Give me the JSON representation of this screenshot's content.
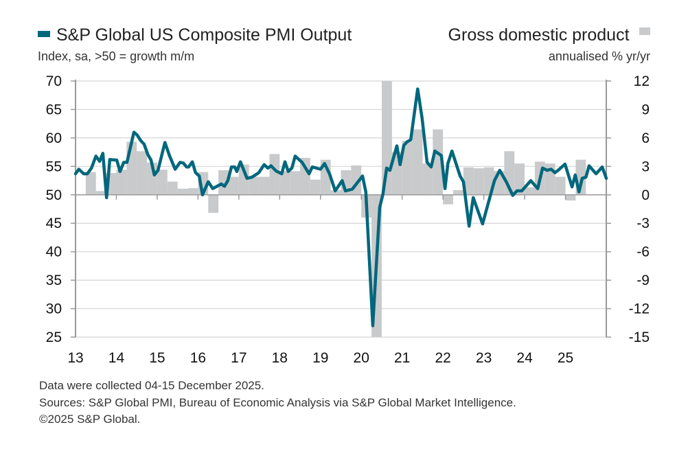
{
  "legend": {
    "pmi_label": "S&P Global US Composite PMI Output",
    "pmi_units": "Index, sa, >50 = growth m/m",
    "gdp_label": "Gross domestic product",
    "gdp_units": "annualised % yr/yr"
  },
  "footer": {
    "line1": "Data were collected 04-15 December 2025.",
    "line2": "Sources: S&P Global PMI, Bureau of Economic Analysis via S&P Global Market Intelligence.",
    "line3": "©2025 S&P Global."
  },
  "chart_data": {
    "type": "line+bar",
    "colors": {
      "pmi": "#00677c",
      "gdp": "#c9cacc",
      "grid": "#d4d4d4"
    },
    "grid": true,
    "xlim": [
      2013,
      2026
    ],
    "x_tick_labels": [
      "13",
      "14",
      "15",
      "16",
      "17",
      "18",
      "19",
      "20",
      "21",
      "22",
      "23",
      "24",
      "25"
    ],
    "y_left": {
      "ylim": [
        25,
        70
      ],
      "ticks": [
        "70",
        "65",
        "60",
        "55",
        "50",
        "45",
        "40",
        "35",
        "30",
        "25"
      ]
    },
    "y_right": {
      "ylim": [
        -15,
        12
      ],
      "ticks": [
        "12",
        "9",
        "6",
        "3",
        "0",
        "-3",
        "-6",
        "-9",
        "-12",
        "-15"
      ]
    },
    "series": [
      {
        "name": "S&P Global US Composite PMI Output",
        "type": "line",
        "axis": "left",
        "points": [
          [
            2013.0,
            53.7
          ],
          [
            2013.08,
            54.5
          ],
          [
            2013.2,
            53.7
          ],
          [
            2013.29,
            53.7
          ],
          [
            2013.39,
            54.7
          ],
          [
            2013.5,
            56.8
          ],
          [
            2013.59,
            55.9
          ],
          [
            2013.67,
            57.3
          ],
          [
            2013.76,
            49.5
          ],
          [
            2013.84,
            56.2
          ],
          [
            2014.01,
            56.1
          ],
          [
            2014.09,
            54.1
          ],
          [
            2014.18,
            55.7
          ],
          [
            2014.26,
            55.7
          ],
          [
            2014.43,
            61.0
          ],
          [
            2014.51,
            60.5
          ],
          [
            2014.6,
            59.5
          ],
          [
            2014.68,
            58.9
          ],
          [
            2014.77,
            57.1
          ],
          [
            2014.85,
            56.1
          ],
          [
            2014.93,
            53.5
          ],
          [
            2015.02,
            54.3
          ],
          [
            2015.19,
            59.2
          ],
          [
            2015.3,
            56.9
          ],
          [
            2015.44,
            54.5
          ],
          [
            2015.56,
            55.7
          ],
          [
            2015.64,
            55.6
          ],
          [
            2015.72,
            54.9
          ],
          [
            2015.77,
            54.9
          ],
          [
            2015.86,
            55.8
          ],
          [
            2015.94,
            53.9
          ],
          [
            2016.03,
            53.3
          ],
          [
            2016.11,
            50.0
          ],
          [
            2016.25,
            52.3
          ],
          [
            2016.36,
            51.1
          ],
          [
            2016.57,
            51.9
          ],
          [
            2016.65,
            51.5
          ],
          [
            2016.73,
            52.5
          ],
          [
            2016.82,
            54.9
          ],
          [
            2016.9,
            54.9
          ],
          [
            2016.95,
            54.1
          ],
          [
            2017.04,
            55.8
          ],
          [
            2017.2,
            52.9
          ],
          [
            2017.32,
            53.1
          ],
          [
            2017.49,
            53.9
          ],
          [
            2017.62,
            55.3
          ],
          [
            2017.71,
            54.7
          ],
          [
            2017.79,
            55.1
          ],
          [
            2017.91,
            54.2
          ],
          [
            2018.05,
            53.7
          ],
          [
            2018.13,
            55.8
          ],
          [
            2018.21,
            54.1
          ],
          [
            2018.3,
            54.7
          ],
          [
            2018.38,
            56.8
          ],
          [
            2018.55,
            55.7
          ],
          [
            2018.72,
            53.7
          ],
          [
            2018.8,
            54.9
          ],
          [
            2019.0,
            54.5
          ],
          [
            2019.1,
            55.5
          ],
          [
            2019.22,
            53.7
          ],
          [
            2019.36,
            50.7
          ],
          [
            2019.53,
            52.5
          ],
          [
            2019.61,
            50.7
          ],
          [
            2019.78,
            51.0
          ],
          [
            2020.03,
            53.3
          ],
          [
            2020.11,
            50.5
          ],
          [
            2020.28,
            27.0
          ],
          [
            2020.45,
            47.8
          ],
          [
            2020.53,
            50.1
          ],
          [
            2020.62,
            54.7
          ],
          [
            2020.7,
            54.3
          ],
          [
            2020.87,
            58.6
          ],
          [
            2020.95,
            55.3
          ],
          [
            2021.04,
            58.7
          ],
          [
            2021.12,
            59.3
          ],
          [
            2021.21,
            59.7
          ],
          [
            2021.38,
            68.6
          ],
          [
            2021.49,
            63.4
          ],
          [
            2021.61,
            55.7
          ],
          [
            2021.71,
            54.9
          ],
          [
            2021.8,
            57.7
          ],
          [
            2021.96,
            56.9
          ],
          [
            2022.05,
            51.1
          ],
          [
            2022.12,
            55.5
          ],
          [
            2022.22,
            57.7
          ],
          [
            2022.42,
            53.3
          ],
          [
            2022.5,
            52.3
          ],
          [
            2022.64,
            44.5
          ],
          [
            2022.74,
            49.5
          ],
          [
            2022.97,
            44.9
          ],
          [
            2023.26,
            52.5
          ],
          [
            2023.39,
            54.3
          ],
          [
            2023.55,
            52.3
          ],
          [
            2023.71,
            49.9
          ],
          [
            2023.81,
            50.7
          ],
          [
            2023.93,
            50.7
          ],
          [
            2024.15,
            52.5
          ],
          [
            2024.32,
            51.1
          ],
          [
            2024.44,
            54.7
          ],
          [
            2024.55,
            54.3
          ],
          [
            2024.65,
            54.5
          ],
          [
            2024.74,
            53.9
          ],
          [
            2024.82,
            54.3
          ],
          [
            2024.99,
            55.4
          ],
          [
            2025.16,
            51.4
          ],
          [
            2025.24,
            53.5
          ],
          [
            2025.33,
            50.5
          ],
          [
            2025.41,
            52.9
          ],
          [
            2025.5,
            53.1
          ],
          [
            2025.58,
            55.1
          ],
          [
            2025.75,
            53.7
          ],
          [
            2025.9,
            54.9
          ],
          [
            2026.0,
            52.9
          ]
        ]
      },
      {
        "name": "Gross domestic product",
        "type": "bar",
        "axis": "right",
        "quarters": [
          "2013 Q2",
          "2013 Q3",
          "2013 Q4",
          "2014 Q1",
          "2014 Q2",
          "2014 Q3",
          "2014 Q4",
          "2015 Q1",
          "2015 Q2",
          "2015 Q3",
          "2015 Q4",
          "2016 Q1",
          "2016 Q2",
          "2016 Q3",
          "2016 Q4",
          "2017 Q1",
          "2017 Q2",
          "2017 Q3",
          "2017 Q4",
          "2018 Q1",
          "2018 Q2",
          "2018 Q3",
          "2018 Q4",
          "2019 Q1",
          "2019 Q2",
          "2019 Q3",
          "2019 Q4",
          "2020 Q1",
          "2020 Q2",
          "2020 Q3",
          "2020 Q4",
          "2021 Q1",
          "2021 Q2",
          "2021 Q3",
          "2021 Q4",
          "2022 Q1",
          "2022 Q2",
          "2022 Q3",
          "2022 Q4",
          "2023 Q1",
          "2023 Q2",
          "2023 Q3",
          "2023 Q4",
          "2024 Q1",
          "2024 Q2",
          "2024 Q3",
          "2024 Q4",
          "2025 Q1",
          "2025 Q2"
        ],
        "values": [
          2.4,
          0.4,
          2.3,
          2.65,
          5.6,
          4.6,
          3.4,
          2.65,
          1.4,
          0.65,
          0.7,
          2.4,
          -1.9,
          2.6,
          1.9,
          3.2,
          1.9,
          1.9,
          4.3,
          2.5,
          2.5,
          3.9,
          1.6,
          3.7,
          0.5,
          2.6,
          3.1,
          -2.4,
          -15,
          12,
          4.5,
          5.7,
          6.9,
          3.3,
          6.9,
          -1.0,
          0.5,
          2.9,
          2.8,
          2.9,
          2.5,
          4.6,
          3.3,
          0.8,
          3.5,
          3.3,
          1.9,
          -0.6,
          3.7
        ]
      }
    ]
  }
}
